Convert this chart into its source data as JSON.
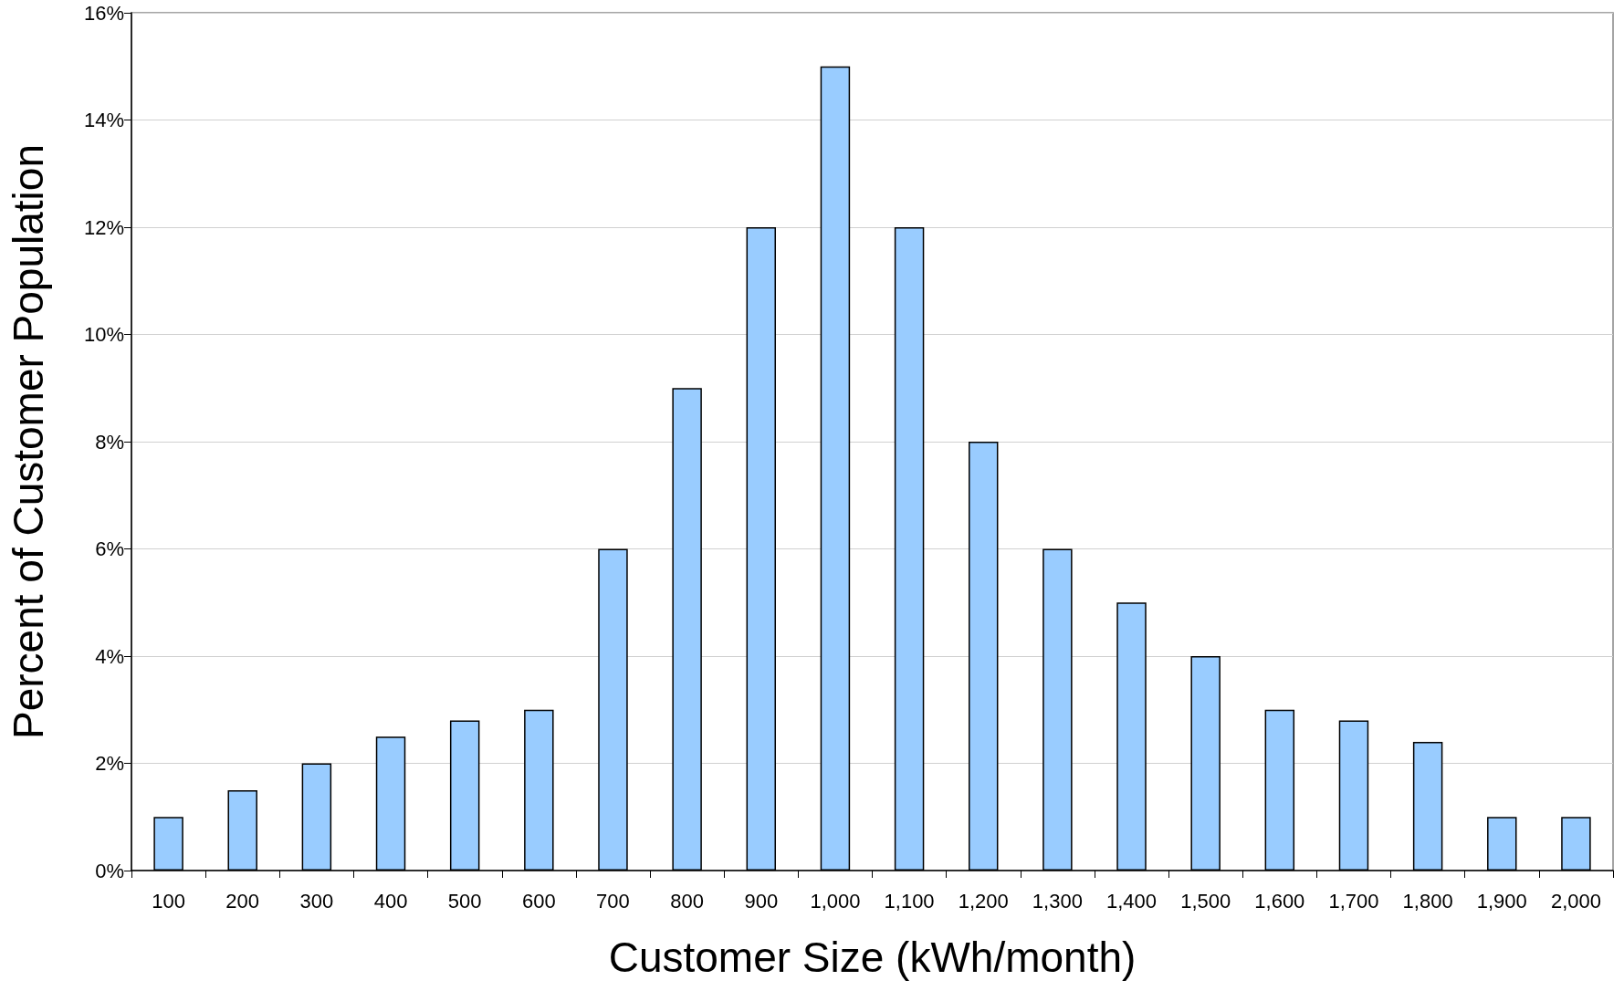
{
  "chart_data": {
    "type": "bar",
    "xlabel": "Customer Size (kWh/month)",
    "ylabel": "Percent of Customer Population",
    "categories": [
      "100",
      "200",
      "300",
      "400",
      "500",
      "600",
      "700",
      "800",
      "900",
      "1,000",
      "1,100",
      "1,200",
      "1,300",
      "1,400",
      "1,500",
      "1,600",
      "1,700",
      "1,800",
      "1,900",
      "2,000"
    ],
    "values": [
      1,
      1.5,
      2,
      2.5,
      2.8,
      3,
      6,
      9,
      12,
      15,
      12,
      8,
      6,
      5,
      4,
      3,
      2.8,
      2.4,
      1,
      1
    ],
    "color": "#99ccff",
    "ylim": [
      0,
      16
    ],
    "yticks": [
      {
        "value": 0,
        "label": "0%"
      },
      {
        "value": 2,
        "label": "2%"
      },
      {
        "value": 4,
        "label": "4%"
      },
      {
        "value": 6,
        "label": "6%"
      },
      {
        "value": 8,
        "label": "8%"
      },
      {
        "value": 10,
        "label": "10%"
      },
      {
        "value": 12,
        "label": "12%"
      },
      {
        "value": 14,
        "label": "14%"
      },
      {
        "value": 16,
        "label": "16%"
      }
    ],
    "grid": "y"
  }
}
